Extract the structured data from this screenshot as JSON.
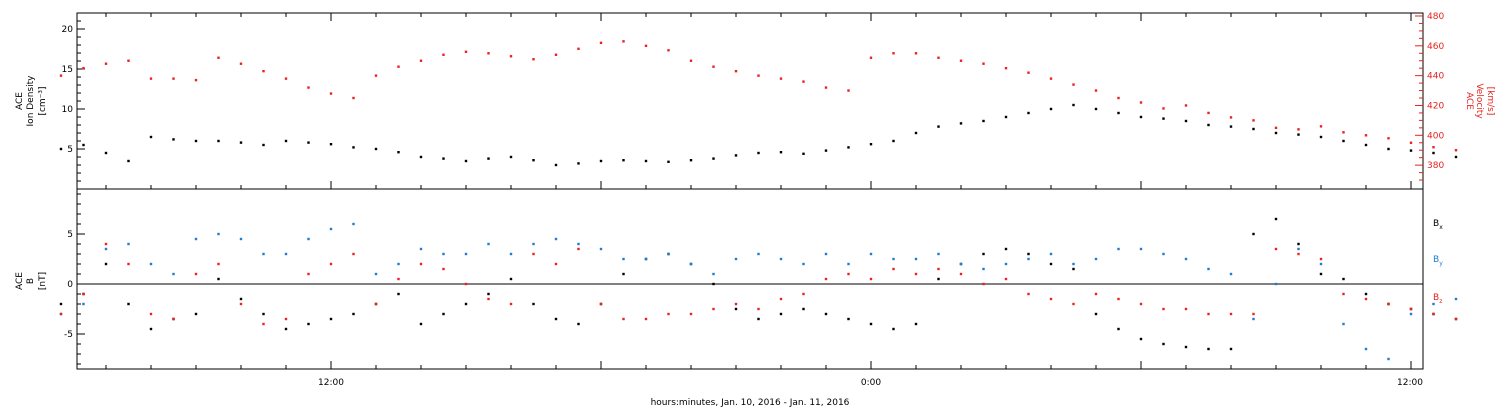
{
  "chart_data": [
    {
      "type": "scatter",
      "panel": "top",
      "x_unit": "hours since 2016-01-10 00:00",
      "ylabel_left": [
        "ACE",
        "Ion Density",
        "[cm⁻³]"
      ],
      "ylabel_right": [
        "ACE",
        "Velocity",
        "[km/s]"
      ],
      "ylim_left": [
        0,
        22
      ],
      "ylim_right": [
        364,
        482
      ],
      "yticks_left": [
        "5",
        "10",
        "15",
        "20"
      ],
      "yticks_right": [
        "380",
        "400",
        "420",
        "440",
        "460",
        "480"
      ],
      "series": [
        {
          "axis": "left",
          "color": "#000000",
          "x": [
            6.0,
            6.5,
            7.0,
            7.5,
            8.0,
            8.5,
            9.0,
            9.5,
            10.0,
            10.5,
            11.0,
            11.5,
            12.0,
            12.5,
            13.0,
            13.5,
            14.0,
            14.5,
            15.0,
            15.5,
            16.0,
            16.5,
            17.0,
            17.5,
            18.0,
            18.5,
            19.0,
            19.5,
            20.0,
            20.5,
            21.0,
            21.5,
            22.0,
            22.5,
            23.0,
            23.5,
            24.0,
            24.5,
            25.0,
            25.5,
            26.0,
            26.5,
            27.0,
            27.5,
            28.0,
            28.5,
            29.0,
            29.5,
            30.0,
            30.5,
            31.0,
            31.5,
            32.0,
            32.5,
            33.0,
            33.5,
            34.0,
            34.5,
            35.0,
            35.5,
            36.0,
            36.5,
            37.0
          ],
          "values": [
            5.0,
            5.5,
            4.5,
            3.5,
            6.5,
            6.2,
            6.0,
            6.0,
            5.8,
            5.5,
            6.0,
            5.8,
            5.6,
            5.2,
            5.0,
            4.6,
            4.0,
            3.8,
            3.5,
            3.8,
            4.0,
            3.6,
            3.0,
            3.2,
            3.5,
            3.6,
            3.5,
            3.4,
            3.6,
            3.8,
            4.2,
            4.5,
            4.6,
            4.4,
            4.8,
            5.2,
            5.6,
            6.0,
            7.0,
            7.8,
            8.2,
            8.5,
            9.0,
            9.5,
            10.0,
            10.5,
            10.0,
            9.5,
            9.0,
            8.8,
            8.5,
            8.0,
            7.8,
            7.5,
            7.0,
            6.8,
            6.5,
            6.0,
            5.5,
            5.0,
            4.8,
            4.5,
            4.0
          ]
        },
        {
          "axis": "right",
          "color": "#e8231f",
          "x": [
            6.0,
            6.5,
            7.0,
            7.5,
            8.0,
            8.5,
            9.0,
            9.5,
            10.0,
            10.5,
            11.0,
            11.5,
            12.0,
            12.5,
            13.0,
            13.5,
            14.0,
            14.5,
            15.0,
            15.5,
            16.0,
            16.5,
            17.0,
            17.5,
            18.0,
            18.5,
            19.0,
            19.5,
            20.0,
            20.5,
            21.0,
            21.5,
            22.0,
            22.5,
            23.0,
            23.5,
            24.0,
            24.5,
            25.0,
            25.5,
            26.0,
            26.5,
            27.0,
            27.5,
            28.0,
            28.5,
            29.0,
            29.5,
            30.0,
            30.5,
            31.0,
            31.5,
            32.0,
            32.5,
            33.0,
            33.5,
            34.0,
            34.5,
            35.0,
            35.5,
            36.0,
            36.5,
            37.0
          ],
          "values": [
            440,
            445,
            448,
            450,
            438,
            438,
            437,
            452,
            448,
            443,
            438,
            432,
            428,
            425,
            440,
            446,
            450,
            454,
            456,
            455,
            453,
            451,
            454,
            458,
            462,
            463,
            460,
            457,
            450,
            446,
            443,
            440,
            438,
            436,
            432,
            430,
            452,
            455,
            455,
            452,
            450,
            448,
            445,
            442,
            438,
            434,
            430,
            425,
            422,
            418,
            420,
            415,
            412,
            410,
            405,
            404,
            406,
            402,
            400,
            398,
            395,
            392,
            390
          ]
        }
      ]
    },
    {
      "type": "scatter",
      "panel": "bottom",
      "x_unit": "hours since 2016-01-10 00:00",
      "ylabel": [
        "ACE",
        "B",
        "[nT]"
      ],
      "ylim": [
        -8.5,
        9.5
      ],
      "yticks": [
        "-5",
        "0",
        "5"
      ],
      "legend_placement": "right",
      "series": [
        {
          "name": "Bx",
          "label_main": "B",
          "label_sub": "x",
          "color": "#000000",
          "x": [
            6.0,
            6.5,
            7.0,
            7.5,
            8.0,
            8.5,
            9.0,
            9.5,
            10.0,
            10.5,
            11.0,
            11.5,
            12.0,
            12.5,
            13.0,
            13.5,
            14.0,
            14.5,
            15.0,
            15.5,
            16.0,
            16.5,
            17.0,
            17.5,
            18.0,
            18.5,
            19.0,
            19.5,
            20.0,
            20.5,
            21.0,
            21.5,
            22.0,
            22.5,
            23.0,
            23.5,
            24.0,
            24.5,
            25.0,
            25.5,
            26.0,
            26.5,
            27.0,
            27.5,
            28.0,
            28.5,
            29.0,
            29.5,
            30.0,
            30.5,
            31.0,
            31.5,
            32.0,
            32.5,
            33.0,
            33.5,
            34.0,
            34.5,
            35.0,
            35.5,
            36.0,
            36.5,
            37.0
          ],
          "values": [
            -2.0,
            -1.0,
            2.0,
            -2.0,
            -4.5,
            -3.5,
            -3.0,
            0.5,
            -1.5,
            -3.0,
            -4.5,
            -4.0,
            -3.5,
            -3.0,
            -2.0,
            -1.0,
            -4.0,
            -3.0,
            -2.0,
            -1.0,
            0.5,
            -2.0,
            -3.5,
            -4.0,
            -2.0,
            1.0,
            2.5,
            3.0,
            2.0,
            0.0,
            -2.5,
            -3.5,
            -3.0,
            -2.5,
            -3.0,
            -3.5,
            -4.0,
            -4.5,
            -4.0,
            0.5,
            2.0,
            3.0,
            3.5,
            3.0,
            2.0,
            1.5,
            -3.0,
            -4.5,
            -5.5,
            -6.0,
            -6.3,
            -6.5,
            -6.5,
            5.0,
            6.5,
            4.0,
            1.0,
            0.5,
            -1.0,
            -2.0,
            -2.5,
            -3.0,
            -3.5
          ]
        },
        {
          "name": "By",
          "label_main": "B",
          "label_sub": "y",
          "color": "#1f7ccf",
          "x": [
            6.0,
            6.5,
            7.0,
            7.5,
            8.0,
            8.5,
            9.0,
            9.5,
            10.0,
            10.5,
            11.0,
            11.5,
            12.0,
            12.5,
            13.0,
            13.5,
            14.0,
            14.5,
            15.0,
            15.5,
            16.0,
            16.5,
            17.0,
            17.5,
            18.0,
            18.5,
            19.0,
            19.5,
            20.0,
            20.5,
            21.0,
            21.5,
            22.0,
            22.5,
            23.0,
            23.5,
            24.0,
            24.5,
            25.0,
            25.5,
            26.0,
            26.5,
            27.0,
            27.5,
            28.0,
            28.5,
            29.0,
            29.5,
            30.0,
            30.5,
            31.0,
            31.5,
            32.0,
            32.5,
            33.0,
            33.5,
            34.0,
            34.5,
            35.0,
            35.5,
            36.0,
            36.5,
            37.0
          ],
          "values": [
            -3.0,
            -2.0,
            3.5,
            4.0,
            2.0,
            1.0,
            4.5,
            5.0,
            4.5,
            3.0,
            3.0,
            4.5,
            5.5,
            6.0,
            1.0,
            2.0,
            3.5,
            3.0,
            3.0,
            4.0,
            3.0,
            4.0,
            4.5,
            4.0,
            3.5,
            2.5,
            2.5,
            3.0,
            2.0,
            1.0,
            2.5,
            3.0,
            2.5,
            2.0,
            3.0,
            2.0,
            3.0,
            2.5,
            2.5,
            3.0,
            2.0,
            1.5,
            2.0,
            2.5,
            3.0,
            2.0,
            2.5,
            3.5,
            3.5,
            3.0,
            2.5,
            1.5,
            1.0,
            -3.5,
            0.0,
            3.5,
            2.0,
            -4.0,
            -6.5,
            -7.5,
            -3.0,
            -2.0,
            -1.5
          ]
        },
        {
          "name": "Bz",
          "label_main": "B",
          "label_sub": "z",
          "color": "#e8231f",
          "x": [
            6.0,
            6.5,
            7.0,
            7.5,
            8.0,
            8.5,
            9.0,
            9.5,
            10.0,
            10.5,
            11.0,
            11.5,
            12.0,
            12.5,
            13.0,
            13.5,
            14.0,
            14.5,
            15.0,
            15.5,
            16.0,
            16.5,
            17.0,
            17.5,
            18.0,
            18.5,
            19.0,
            19.5,
            20.0,
            20.5,
            21.0,
            21.5,
            22.0,
            22.5,
            23.0,
            23.5,
            24.0,
            24.5,
            25.0,
            25.5,
            26.0,
            26.5,
            27.0,
            27.5,
            28.0,
            28.5,
            29.0,
            29.5,
            30.0,
            30.5,
            31.0,
            31.5,
            32.0,
            32.5,
            33.0,
            33.5,
            34.0,
            34.5,
            35.0,
            35.5,
            36.0,
            36.5,
            37.0
          ],
          "values": [
            -3.0,
            -1.0,
            4.0,
            2.0,
            -3.0,
            -3.5,
            1.0,
            2.0,
            -2.0,
            -4.0,
            -3.5,
            1.0,
            2.0,
            3.0,
            -2.0,
            0.5,
            2.0,
            1.5,
            0.0,
            -1.5,
            -2.0,
            3.0,
            2.0,
            3.5,
            -2.0,
            -3.5,
            -3.5,
            -3.0,
            -3.0,
            -2.5,
            -2.0,
            -2.5,
            -1.5,
            -1.0,
            0.5,
            1.0,
            0.5,
            1.5,
            1.0,
            1.5,
            1.0,
            0.0,
            0.5,
            -1.0,
            -1.5,
            -2.0,
            -1.0,
            -1.5,
            -2.0,
            -2.5,
            -2.5,
            -3.0,
            -3.0,
            -3.0,
            3.5,
            3.0,
            2.5,
            -1.0,
            -1.5,
            -2.0,
            -2.5,
            -3.0,
            -3.5
          ]
        }
      ]
    }
  ],
  "x_axis": {
    "tick_labels": [
      "12:00",
      "0:00",
      "12:00"
    ],
    "title": "hours:minutes, Jan. 10, 2016 - Jan. 11, 2016"
  }
}
